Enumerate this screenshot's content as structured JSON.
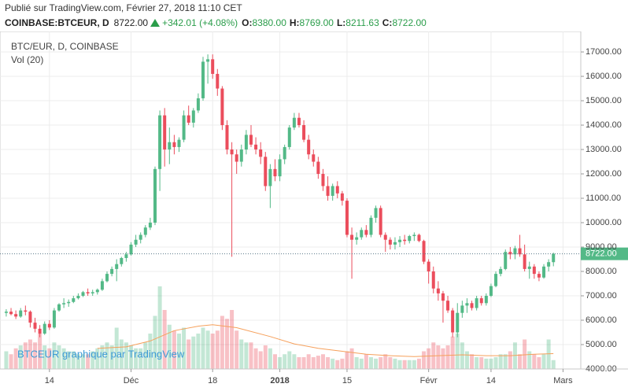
{
  "header": {
    "published": "Publié sur TradingView.com, Février 27, 2018 11:10 CET",
    "symbol": "COINBASE:BTCEUR, D",
    "last": "8722.00",
    "change": "+342.01 (+4.08%)",
    "open_label": "O:",
    "open": "8380.00",
    "high_label": "H:",
    "high": "8769.00",
    "low_label": "L:",
    "low": "8211.63",
    "close_label": "C:",
    "close": "8722.00"
  },
  "chart_data": {
    "type": "candlestick",
    "title": "BTC/EUR, D, COINBASE",
    "volume_title": "Vol (20)",
    "watermark": "BTCEUR graphique par TradingView",
    "up_color": "#53b987",
    "down_color": "#eb4d5c",
    "ma_color": "#f6a05b",
    "grid": true,
    "candles": [
      [
        6300,
        6450,
        6150,
        6350
      ],
      [
        6350,
        6500,
        6200,
        6250
      ],
      [
        6250,
        6400,
        6050,
        6150
      ],
      [
        6150,
        6500,
        6100,
        6400
      ],
      [
        6400,
        6600,
        6200,
        6350
      ],
      [
        6350,
        6400,
        5700,
        5900
      ],
      [
        5900,
        6100,
        5500,
        5650
      ],
      [
        5650,
        5800,
        5300,
        5450
      ],
      [
        5450,
        5950,
        5400,
        5850
      ],
      [
        5850,
        6000,
        5600,
        5700
      ],
      [
        5700,
        6500,
        5650,
        6400
      ],
      [
        6400,
        6700,
        6350,
        6650
      ],
      [
        6650,
        6900,
        6500,
        6700
      ],
      [
        6700,
        6850,
        6550,
        6750
      ],
      [
        6750,
        7000,
        6700,
        6900
      ],
      [
        6900,
        7100,
        6850,
        7000
      ],
      [
        7000,
        7200,
        6950,
        7150
      ],
      [
        7150,
        7300,
        7000,
        7100
      ],
      [
        7100,
        7250,
        7000,
        7150
      ],
      [
        7150,
        7300,
        7050,
        7250
      ],
      [
        7250,
        7700,
        7200,
        7600
      ],
      [
        7600,
        8000,
        7550,
        7900
      ],
      [
        7900,
        8200,
        7800,
        8100
      ],
      [
        8100,
        8500,
        7600,
        8300
      ],
      [
        8300,
        8600,
        8200,
        8550
      ],
      [
        8550,
        8800,
        8400,
        8700
      ],
      [
        8700,
        9200,
        8650,
        9100
      ],
      [
        9100,
        9500,
        9000,
        9300
      ],
      [
        9300,
        9600,
        9150,
        9500
      ],
      [
        9500,
        9900,
        9400,
        9800
      ],
      [
        9800,
        10200,
        9700,
        10000
      ],
      [
        10000,
        12300,
        9900,
        12200
      ],
      [
        12200,
        14600,
        11300,
        14400
      ],
      [
        14400,
        14700,
        12300,
        13000
      ],
      [
        13000,
        13900,
        12400,
        13300
      ],
      [
        13300,
        13600,
        12800,
        13100
      ],
      [
        13100,
        13500,
        12900,
        13400
      ],
      [
        13400,
        14600,
        13300,
        14400
      ],
      [
        14400,
        14800,
        14000,
        14100
      ],
      [
        14100,
        14700,
        13900,
        14600
      ],
      [
        14600,
        15300,
        14500,
        15100
      ],
      [
        15100,
        16800,
        15000,
        16600
      ],
      [
        16600,
        16900,
        15700,
        16700
      ],
      [
        16700,
        16900,
        15900,
        16100
      ],
      [
        16100,
        16300,
        15200,
        15500
      ],
      [
        15500,
        15600,
        13800,
        14000
      ],
      [
        14000,
        14200,
        12800,
        13000
      ],
      [
        13000,
        13300,
        8600,
        12800
      ],
      [
        12800,
        13000,
        12000,
        12500
      ],
      [
        12500,
        13200,
        12300,
        13000
      ],
      [
        13000,
        13800,
        12800,
        13600
      ],
      [
        13600,
        14000,
        13100,
        13200
      ],
      [
        13200,
        13500,
        12800,
        13000
      ],
      [
        13000,
        13300,
        12400,
        12700
      ],
      [
        12700,
        12900,
        11300,
        11500
      ],
      [
        11500,
        12400,
        10600,
        12200
      ],
      [
        12200,
        12600,
        11700,
        11900
      ],
      [
        11900,
        12800,
        11700,
        12600
      ],
      [
        12600,
        13200,
        12400,
        13100
      ],
      [
        13100,
        14000,
        13000,
        13900
      ],
      [
        13900,
        14500,
        13800,
        14300
      ],
      [
        14300,
        14500,
        13900,
        14000
      ],
      [
        14000,
        14200,
        13300,
        13400
      ],
      [
        13400,
        13600,
        12600,
        12800
      ],
      [
        12800,
        13000,
        12300,
        12500
      ],
      [
        12500,
        12700,
        11800,
        12000
      ],
      [
        12000,
        12200,
        11300,
        11500
      ],
      [
        11500,
        11900,
        10900,
        11100
      ],
      [
        11100,
        11600,
        10900,
        11500
      ],
      [
        11500,
        11700,
        11000,
        11200
      ],
      [
        11200,
        11300,
        10700,
        10900
      ],
      [
        10900,
        11000,
        9400,
        9500
      ],
      [
        9500,
        9800,
        7700,
        9300
      ],
      [
        9300,
        9600,
        9100,
        9400
      ],
      [
        9400,
        9800,
        9300,
        9700
      ],
      [
        9700,
        9900,
        9400,
        9500
      ],
      [
        9500,
        10300,
        9400,
        10200
      ],
      [
        10200,
        10700,
        10000,
        10600
      ],
      [
        10600,
        10700,
        9400,
        9500
      ],
      [
        9500,
        9600,
        8800,
        9300
      ],
      [
        9300,
        9400,
        8900,
        9100
      ],
      [
        9100,
        9400,
        8900,
        9200
      ],
      [
        9200,
        9450,
        9000,
        9300
      ],
      [
        9300,
        9500,
        9100,
        9250
      ],
      [
        9250,
        9500,
        9150,
        9450
      ],
      [
        9450,
        9600,
        9250,
        9500
      ],
      [
        9500,
        9550,
        9200,
        9250
      ],
      [
        9250,
        9300,
        8300,
        8400
      ],
      [
        8400,
        8500,
        7500,
        8000
      ],
      [
        8000,
        8200,
        7100,
        7300
      ],
      [
        7300,
        7600,
        6800,
        7100
      ],
      [
        7100,
        7200,
        5900,
        6800
      ],
      [
        6800,
        7000,
        6300,
        6400
      ],
      [
        6400,
        6500,
        5300,
        5500
      ],
      [
        5500,
        6700,
        5300,
        6300
      ],
      [
        6300,
        6800,
        6100,
        6600
      ],
      [
        6600,
        6900,
        6300,
        6700
      ],
      [
        6700,
        6800,
        6400,
        6500
      ],
      [
        6500,
        7000,
        6400,
        6900
      ],
      [
        6900,
        7000,
        6600,
        6700
      ],
      [
        6700,
        7100,
        6600,
        7000
      ],
      [
        7000,
        7500,
        6950,
        7400
      ],
      [
        7400,
        8000,
        7350,
        7900
      ],
      [
        7900,
        8200,
        7800,
        8100
      ],
      [
        8100,
        8900,
        8050,
        8800
      ],
      [
        8800,
        9000,
        8500,
        8700
      ],
      [
        8700,
        9050,
        8500,
        8950
      ],
      [
        8950,
        9500,
        8600,
        8700
      ],
      [
        8700,
        9100,
        8000,
        8100
      ],
      [
        8100,
        8400,
        7700,
        8200
      ],
      [
        8200,
        8300,
        7700,
        7900
      ],
      [
        7900,
        8000,
        7600,
        7750
      ],
      [
        7750,
        8300,
        7700,
        8200
      ],
      [
        8200,
        8500,
        8000,
        8380
      ],
      [
        8380,
        8769,
        8211.63,
        8722
      ]
    ],
    "volumes": [
      6000,
      5000,
      7000,
      8000,
      9000,
      10000,
      9000,
      12000,
      8000,
      7000,
      9000,
      8000,
      7000,
      6000,
      6000,
      5000,
      5000,
      5000,
      6000,
      7000,
      8000,
      9000,
      8000,
      14000,
      10000,
      9000,
      8000,
      7000,
      7000,
      9000,
      12000,
      18000,
      28000,
      20000,
      15000,
      13000,
      12000,
      14000,
      10000,
      11000,
      12000,
      14000,
      13000,
      12000,
      13000,
      18000,
      17000,
      20000,
      13000,
      10000,
      9000,
      9000,
      7000,
      6000,
      8000,
      7000,
      5000,
      4000,
      5000,
      6000,
      5000,
      4000,
      4000,
      5000,
      4000,
      4500,
      5000,
      4000,
      3500,
      3000,
      3500,
      6000,
      7000,
      4000,
      3500,
      5000,
      4000,
      3500,
      4000,
      5000,
      4000,
      3500,
      3000,
      3000,
      3000,
      3000,
      3500,
      6000,
      7000,
      9000,
      8000,
      7000,
      8000,
      11000,
      12000,
      9000,
      6000,
      5000,
      4000,
      4000,
      3500,
      3500,
      4000,
      5000,
      5000,
      6000,
      9000,
      5000,
      10000,
      6000,
      5000,
      4000,
      5000,
      10000,
      3000
    ],
    "volume_lim": [
      0,
      40000
    ],
    "ma_x": [
      19,
      25,
      30,
      35,
      40,
      43,
      48,
      55,
      60,
      65,
      70,
      75,
      80,
      85,
      90,
      95,
      100,
      105,
      110,
      114
    ],
    "ma_values": [
      7000,
      7500,
      9500,
      13000,
      14500,
      15000,
      14000,
      11000,
      8500,
      7000,
      6000,
      5000,
      4500,
      4200,
      4500,
      4800,
      4500,
      4500,
      5000,
      5200
    ],
    "last_price": 8722,
    "last_price_label": "8722.00",
    "xlim": [
      -1.3,
      119.7
    ],
    "xticks": [
      {
        "value": 9,
        "label": "14"
      },
      {
        "value": 26,
        "label": "Déc"
      },
      {
        "value": 43,
        "label": "18"
      },
      {
        "value": 57,
        "label": "2018"
      },
      {
        "value": 71,
        "label": "15"
      },
      {
        "value": 88,
        "label": "Févr"
      },
      {
        "value": 101,
        "label": "14"
      },
      {
        "value": 116,
        "label": "Mars"
      }
    ],
    "ylim": [
      4000,
      17840
    ],
    "yticks": [
      {
        "value": 4000,
        "label": "4000.00"
      },
      {
        "value": 5000,
        "label": "5000.00"
      },
      {
        "value": 6000,
        "label": "6000.00"
      },
      {
        "value": 7000,
        "label": "7000.00"
      },
      {
        "value": 8000,
        "label": "8000.00"
      },
      {
        "value": 9000,
        "label": "9000.00"
      },
      {
        "value": 10000,
        "label": "10000.00"
      },
      {
        "value": 11000,
        "label": "11000.00"
      },
      {
        "value": 12000,
        "label": "12000.00"
      },
      {
        "value": 13000,
        "label": "13000.00"
      },
      {
        "value": 14000,
        "label": "14000.00"
      },
      {
        "value": 15000,
        "label": "15000.00"
      },
      {
        "value": 16000,
        "label": "16000.00"
      },
      {
        "value": 17000,
        "label": "17000.00"
      }
    ]
  }
}
